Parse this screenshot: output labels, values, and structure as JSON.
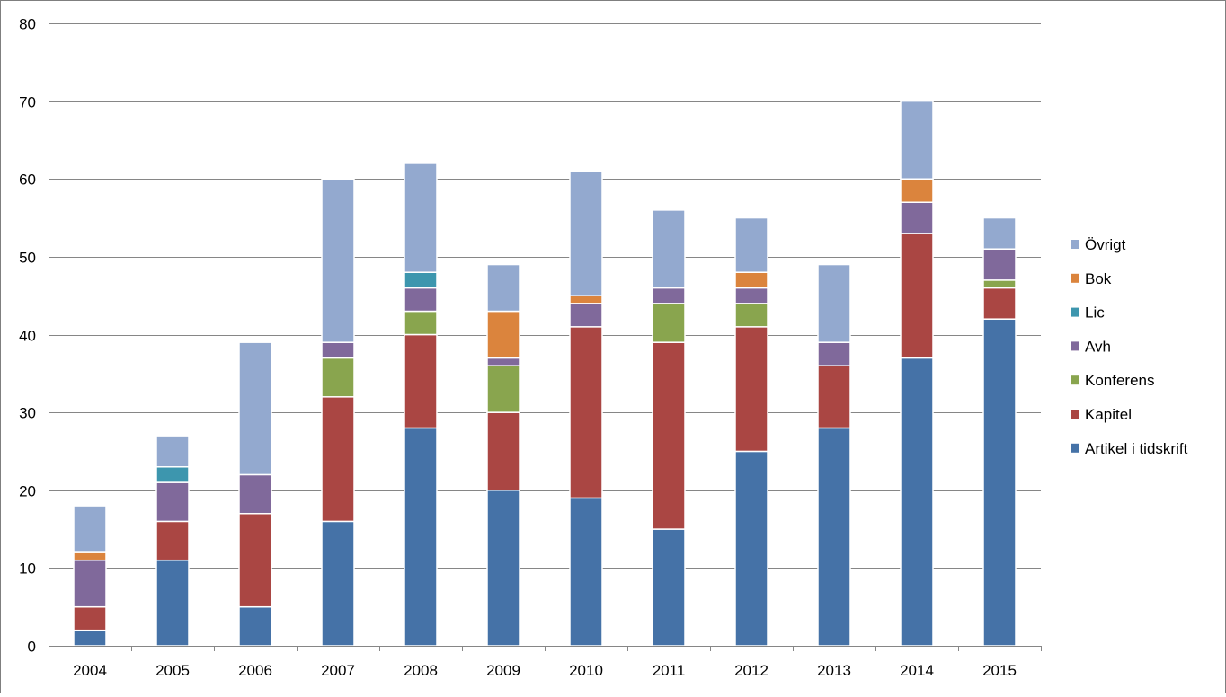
{
  "chart_data": {
    "type": "bar",
    "stacked": true,
    "title": "",
    "xlabel": "",
    "ylabel": "",
    "ylim": [
      0,
      80
    ],
    "yticks": [
      0,
      10,
      20,
      30,
      40,
      50,
      60,
      70,
      80
    ],
    "grid": true,
    "legend_position": "right",
    "categories": [
      "2004",
      "2005",
      "2006",
      "2007",
      "2008",
      "2009",
      "2010",
      "2011",
      "2012",
      "2013",
      "2014",
      "2015"
    ],
    "series": [
      {
        "name": "Artikel i tidskrift",
        "color": "#4572A7",
        "values": [
          2,
          11,
          5,
          16,
          28,
          20,
          19,
          15,
          25,
          28,
          37,
          42
        ]
      },
      {
        "name": "Kapitel",
        "color": "#AA4643",
        "values": [
          3,
          5,
          12,
          16,
          12,
          10,
          22,
          24,
          16,
          8,
          16,
          4
        ]
      },
      {
        "name": "Konferens",
        "color": "#89A54E",
        "values": [
          0,
          0,
          0,
          5,
          3,
          6,
          0,
          5,
          3,
          0,
          0,
          1
        ]
      },
      {
        "name": "Avh",
        "color": "#80699B",
        "values": [
          6,
          5,
          5,
          2,
          3,
          1,
          3,
          2,
          2,
          3,
          4,
          4
        ]
      },
      {
        "name": "Lic",
        "color": "#3D96AE",
        "values": [
          0,
          2,
          0,
          0,
          2,
          0,
          0,
          0,
          0,
          0,
          0,
          0
        ]
      },
      {
        "name": "Bok",
        "color": "#DB843D",
        "values": [
          1,
          0,
          0,
          0,
          0,
          6,
          1,
          0,
          2,
          0,
          3,
          0
        ]
      },
      {
        "name": "Övrigt",
        "color": "#93A9CF",
        "values": [
          6,
          4,
          17,
          21,
          14,
          6,
          16,
          10,
          7,
          10,
          10,
          4
        ]
      }
    ]
  }
}
